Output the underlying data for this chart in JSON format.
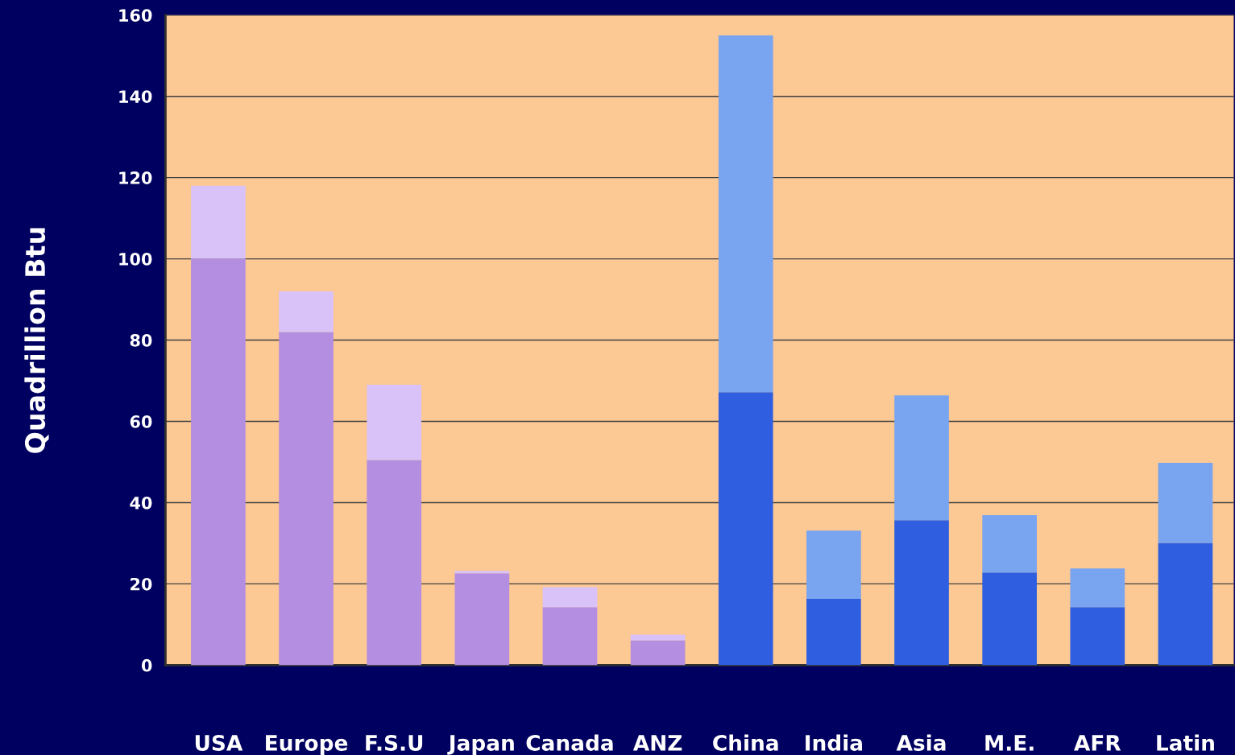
{
  "chart_data": {
    "type": "bar",
    "stacked": true,
    "ylabel": "Quadrillion Btu",
    "categories": [
      "USA",
      "Europe",
      "F.S.U",
      "Japan",
      "Canada",
      "ANZ",
      "China",
      "India",
      "Asia",
      "M.E.",
      "AFR",
      "Latin"
    ],
    "series": [
      {
        "colors": [
          "#b48ee0",
          "#b48ee0",
          "#b48ee0",
          "#b48ee0",
          "#b48ee0",
          "#b48ee0",
          "#2f5fe0",
          "#2f5fe0",
          "#2f5fe0",
          "#2f5fe0",
          "#2f5fe0",
          "#2f5fe0"
        ],
        "values": [
          100,
          82,
          50.5,
          22.6,
          14.3,
          6.1,
          67.2,
          16.3,
          35.7,
          22.8,
          14.3,
          30.1
        ]
      },
      {
        "colors": [
          "#d9c2f7",
          "#d9c2f7",
          "#d9c2f7",
          "#d9c2f7",
          "#d9c2f7",
          "#d9c2f7",
          "#78a4f0",
          "#78a4f0",
          "#78a4f0",
          "#78a4f0",
          "#78a4f0",
          "#78a4f0"
        ],
        "values": [
          18,
          10,
          18.5,
          0.6,
          4.9,
          1.4,
          87.8,
          16.8,
          30.7,
          14.1,
          9.5,
          19.7
        ]
      }
    ],
    "ylim": [
      0,
      160
    ],
    "yticks": [
      0,
      20,
      40,
      60,
      80,
      100,
      120,
      140,
      160
    ],
    "grid": "y",
    "legend": false
  }
}
